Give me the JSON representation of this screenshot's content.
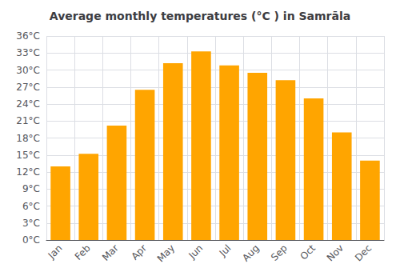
{
  "chart_data": {
    "type": "bar",
    "title": "Average monthly temperatures (°C ) in Samrāla",
    "categories": [
      "Jan",
      "Feb",
      "Mar",
      "Apr",
      "May",
      "Jun",
      "Jul",
      "Aug",
      "Sep",
      "Oct",
      "Nov",
      "Dec"
    ],
    "values": [
      13,
      15.2,
      20.2,
      26.5,
      31.2,
      33.3,
      30.8,
      29.5,
      28.2,
      25,
      19,
      14
    ],
    "color": "#FFA500",
    "ylim": [
      0,
      36
    ],
    "yticks": [
      {
        "value": 0,
        "label": "0°C"
      },
      {
        "value": 3,
        "label": "3°C"
      },
      {
        "value": 6,
        "label": "6°C"
      },
      {
        "value": 9,
        "label": "9°C"
      },
      {
        "value": 12,
        "label": "12°C"
      },
      {
        "value": 15,
        "label": "15°C"
      },
      {
        "value": 18,
        "label": "18°C"
      },
      {
        "value": 21,
        "label": "21°C"
      },
      {
        "value": 24,
        "label": "24°C"
      },
      {
        "value": 27,
        "label": "27°C"
      },
      {
        "value": 30,
        "label": "30°C"
      },
      {
        "value": 33,
        "label": "33°C"
      },
      {
        "value": 36,
        "label": "36°C"
      }
    ],
    "grid": true
  }
}
